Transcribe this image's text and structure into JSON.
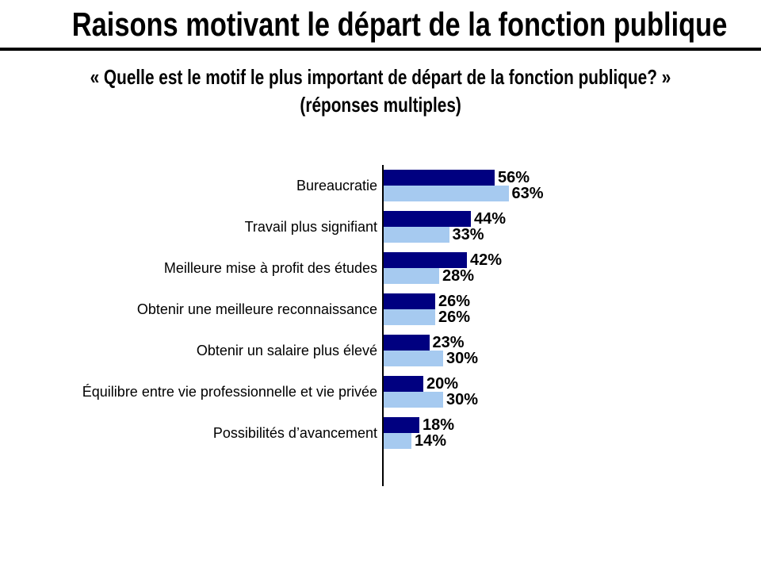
{
  "page": {
    "title": "Raisons motivant le départ de la fonction publique",
    "subtitle_line1": "« Quelle est le motif le plus important de départ de la fonction publique? »",
    "subtitle_line2": "(réponses multiples)"
  },
  "chart_data": {
    "type": "bar",
    "orientation": "horizontal",
    "title": "Raisons motivant le départ de la fonction publique",
    "subtitle": "« Quelle est le motif le plus important de départ de la fonction publique? » (réponses multiples)",
    "categories": [
      "Bureaucratie",
      "Travail plus signifiant",
      "Meilleure mise à profit des études",
      "Obtenir une meilleure reconnaissance",
      "Obtenir un salaire plus élevé",
      "Équilibre entre vie professionnelle et vie privée",
      "Possibilités d’avancement"
    ],
    "series": [
      {
        "name": "series-1",
        "color": "#000080",
        "values": [
          56,
          44,
          42,
          26,
          23,
          20,
          18
        ]
      },
      {
        "name": "series-2",
        "color": "#A6CAF0",
        "values": [
          63,
          33,
          28,
          26,
          30,
          30,
          14
        ]
      }
    ],
    "value_suffix": "%",
    "data_labels": true,
    "legend": "none",
    "xlim": [
      0,
      100
    ],
    "grid": false,
    "axis_color": "#000000"
  }
}
